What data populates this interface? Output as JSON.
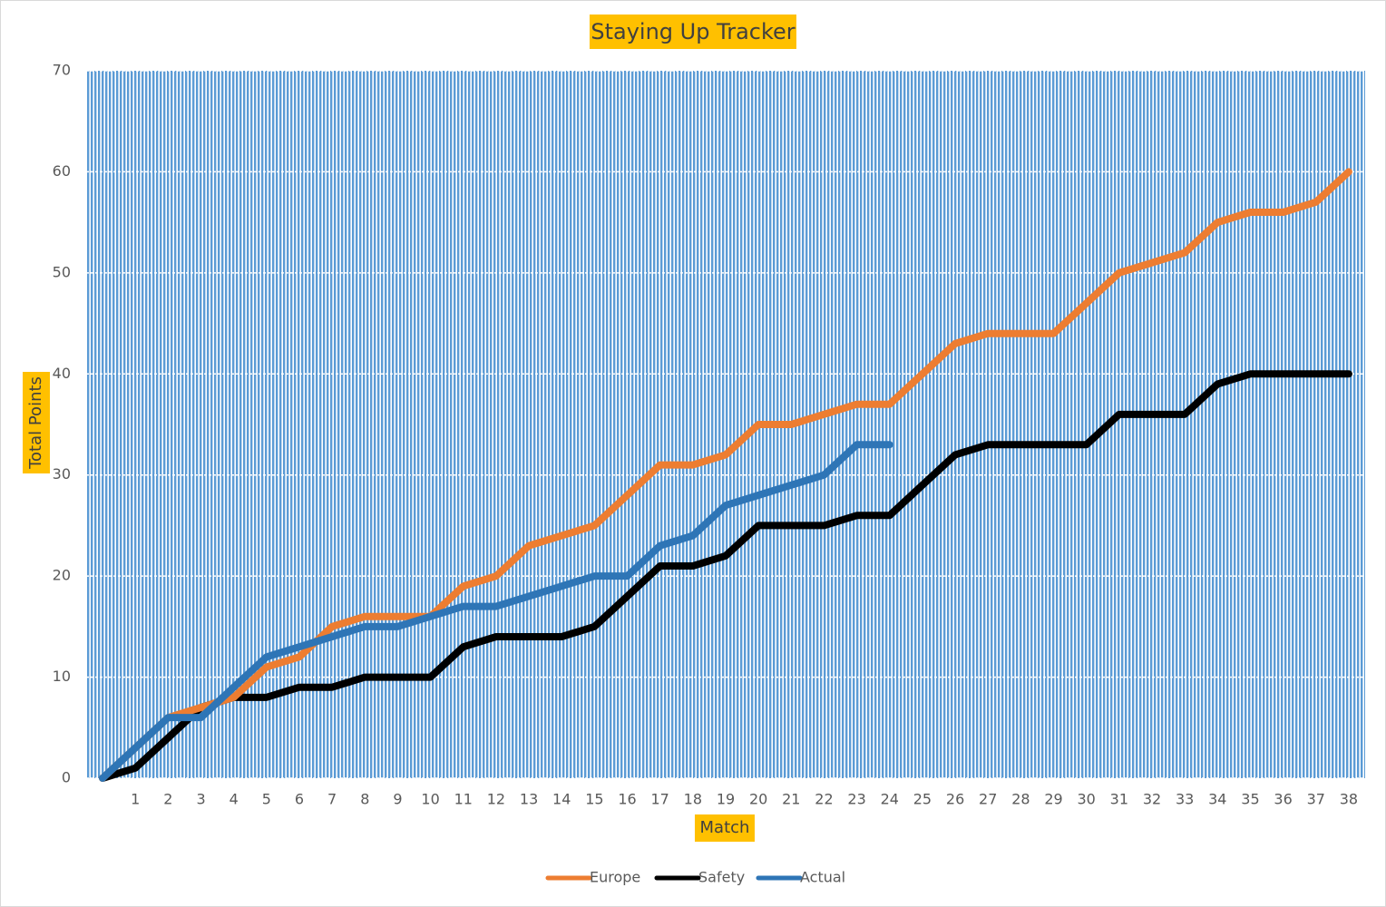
{
  "chart_data": {
    "type": "line",
    "title": "Staying Up Tracker",
    "x_label": "Match",
    "y_label": "Total Points",
    "categories": [
      null,
      "1",
      "2",
      "3",
      "4",
      "5",
      "6",
      "7",
      "8",
      "9",
      "10",
      "11",
      "12",
      "13",
      "14",
      "15",
      "16",
      "17",
      "18",
      "19",
      "20",
      "21",
      "22",
      "23",
      "24",
      "25",
      "26",
      "27",
      "28",
      "29",
      "30",
      "31",
      "32",
      "33",
      "34",
      "35",
      "36",
      "37",
      "38"
    ],
    "series": [
      {
        "name": "Europe",
        "color": "#ed7d31",
        "values": [
          0,
          3,
          6,
          7,
          8,
          11,
          12,
          15,
          16,
          16,
          16,
          19,
          20,
          23,
          24,
          25,
          28,
          31,
          31,
          32,
          35,
          35,
          36,
          37,
          37,
          40,
          43,
          44,
          44,
          44,
          47,
          50,
          51,
          52,
          55,
          56,
          56,
          57,
          60
        ]
      },
      {
        "name": "Safety",
        "color": "#000000",
        "values": [
          0,
          1,
          4,
          7,
          8,
          8,
          9,
          9,
          10,
          10,
          10,
          13,
          14,
          14,
          14,
          15,
          18,
          21,
          21,
          22,
          25,
          25,
          25,
          26,
          26,
          29,
          32,
          33,
          33,
          33,
          33,
          36,
          36,
          36,
          39,
          40,
          40,
          40,
          40
        ]
      },
      {
        "name": "Actual",
        "color": "#2e75b6",
        "values": [
          0,
          3,
          6,
          6,
          9,
          12,
          13,
          14,
          15,
          15,
          16,
          17,
          17,
          18,
          19,
          20,
          20,
          23,
          24,
          27,
          28,
          29,
          30,
          33,
          33,
          null,
          null,
          null,
          null,
          null,
          null,
          null,
          null,
          null,
          null,
          null,
          null,
          null,
          null
        ]
      }
    ],
    "ylim": [
      0,
      70
    ],
    "yticks": [
      0,
      10,
      20,
      30,
      40,
      50,
      60,
      70
    ],
    "grid": true,
    "legend": "bottom"
  }
}
